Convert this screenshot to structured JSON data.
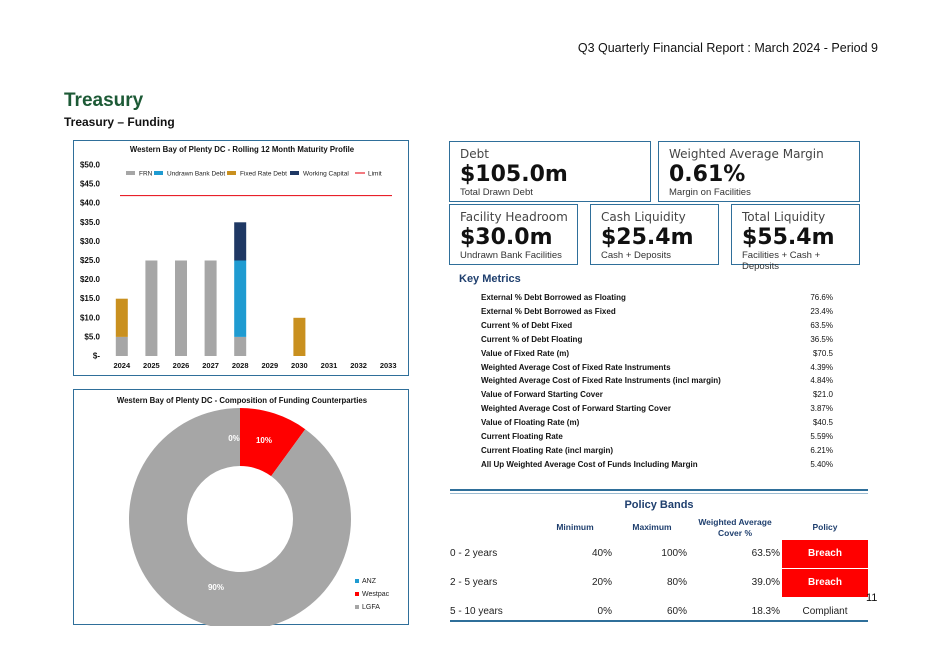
{
  "report_title": "Q3 Quarterly Financial Report : March 2024 - Period 9",
  "heading": "Treasury",
  "subheading": "Treasury – Funding",
  "page_number": "11",
  "cards": {
    "debt": {
      "label": "Debt",
      "value": "$105.0m",
      "sub": "Total Drawn Debt"
    },
    "margin": {
      "label": "Weighted Average Margin",
      "value": "0.61%",
      "sub": "Margin on Facilities"
    },
    "headroom": {
      "label": "Facility Headroom",
      "value": "$30.0m",
      "sub": "Undrawn Bank Facilities"
    },
    "cash": {
      "label": "Cash Liquidity",
      "value": "$25.4m",
      "sub": "Cash + Deposits"
    },
    "total": {
      "label": "Total Liquidity",
      "value": "$55.4m",
      "sub": "Facilities + Cash + Deposits"
    }
  },
  "key_metrics": {
    "title": "Key Metrics",
    "rows": [
      {
        "label": "External % Debt Borrowed as Floating",
        "value": "76.6%"
      },
      {
        "label": "External % Debt Borrowed as Fixed",
        "value": "23.4%"
      },
      {
        "label": "Current % of Debt Fixed",
        "value": "63.5%"
      },
      {
        "label": "Current % of Debt Floating",
        "value": "36.5%"
      },
      {
        "label": "Value of Fixed Rate (m)",
        "value": "$70.5"
      },
      {
        "label": "Weighted Average Cost of Fixed Rate Instruments",
        "value": "4.39%"
      },
      {
        "label": "Weighted Average Cost of Fixed Rate Instruments (incl margin)",
        "value": "4.84%"
      },
      {
        "label": "Value of Forward Starting Cover",
        "value": "$21.0"
      },
      {
        "label": "Weighted Average Cost of Forward Starting Cover",
        "value": "3.87%"
      },
      {
        "label": "Value of Floating Rate (m)",
        "value": "$40.5"
      },
      {
        "label": "Current Floating Rate",
        "value": "5.59%"
      },
      {
        "label": "Current Floating Rate (incl margin)",
        "value": "6.21%"
      },
      {
        "label": "All Up Weighted Average Cost of Funds Including Margin",
        "value": "5.40%"
      }
    ]
  },
  "policy_bands": {
    "title": "Policy Bands",
    "headers": {
      "minimum": "Minimum",
      "maximum": "Maximum",
      "cover_line1": "Weighted Average",
      "cover_line2": "Cover %",
      "policy": "Policy"
    },
    "rows": [
      {
        "band": "0 - 2 years",
        "min": "40%",
        "max": "100%",
        "cover": "63.5%",
        "policy": "Breach"
      },
      {
        "band": "2 - 5 years",
        "min": "20%",
        "max": "80%",
        "cover": "39.0%",
        "policy": "Breach"
      },
      {
        "band": "5 - 10 years",
        "min": "0%",
        "max": "60%",
        "cover": "18.3%",
        "policy": "Compliant"
      }
    ]
  },
  "colors": {
    "frn": "#a6a6a6",
    "undrawn": "#1f9bd1",
    "fixed": "#c9901f",
    "working": "#1f3864",
    "limit": "#e8202a",
    "anz": "#1f9bd1",
    "westpac": "#ff0000",
    "lgfa": "#a6a6a6",
    "breach": "#ff0000"
  },
  "chart_data": [
    {
      "type": "bar",
      "title": "Western Bay of Plenty DC - Rolling 12 Month Maturity Profile",
      "categories": [
        "2024",
        "2025",
        "2026",
        "2027",
        "2028",
        "2029",
        "2030",
        "2031",
        "2032",
        "2033"
      ],
      "series": [
        {
          "name": "FRN",
          "values": [
            5,
            25,
            25,
            25,
            5,
            0,
            0,
            0,
            0,
            0
          ]
        },
        {
          "name": "Undrawn Bank Debt",
          "values": [
            0,
            0,
            0,
            0,
            20,
            0,
            0,
            0,
            0,
            0
          ]
        },
        {
          "name": "Fixed Rate Debt",
          "values": [
            10,
            0,
            0,
            0,
            0,
            0,
            10,
            0,
            0,
            0
          ]
        },
        {
          "name": "Working Capital",
          "values": [
            0,
            0,
            0,
            0,
            10,
            0,
            0,
            0,
            0,
            0
          ]
        }
      ],
      "limit": {
        "name": "Limit",
        "value": 42
      },
      "ylim": [
        0,
        50
      ],
      "yticks": [
        "$-",
        "$5.0",
        "$10.0",
        "$15.0",
        "$20.0",
        "$25.0",
        "$30.0",
        "$35.0",
        "$40.0",
        "$45.0",
        "$50.0"
      ],
      "stacked": true,
      "legend": "top"
    },
    {
      "type": "pie",
      "title": "Western Bay of Plenty DC - Composition of Funding Counterparties",
      "labels": [
        "ANZ",
        "Westpac",
        "LGFA"
      ],
      "values": [
        0,
        10,
        90
      ],
      "data_labels": [
        "0%",
        "10%",
        "90%"
      ],
      "donut": true,
      "legend": "bottom-right"
    }
  ]
}
